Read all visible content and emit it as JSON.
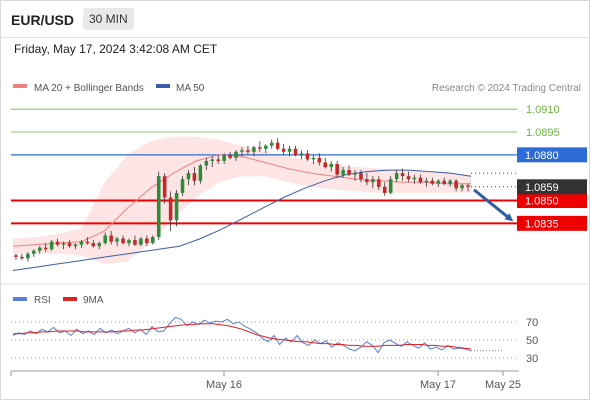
{
  "header": {
    "symbol": "EUR/USD",
    "timeframe": "30 MIN",
    "datetime": "Friday, May 17, 2024 3:42:08 AM CET"
  },
  "legend": {
    "ma20_label": "MA 20 + Bollinger Bands",
    "ma50_label": "MA 50",
    "credit": "Research © 2024 Trading Central",
    "rsi_label": "RSI",
    "rsi_ma_label": "9MA"
  },
  "colors": {
    "ma20": "#f08080",
    "bb_fill": "#fde0e0",
    "ma50": "#3a5ea8",
    "up": "#2e8b3a",
    "down": "#c62828",
    "resistance_green": "#6db33f",
    "level_blue": "#2d6bd6",
    "level_red": "#ee0000",
    "last_price": "#333333",
    "rsi": "#5b7fd8",
    "rsi_ma": "#dd2222",
    "arrow": "#2f5ea3"
  },
  "chart_data": [
    {
      "type": "candlestick",
      "symbol": "EUR/USD",
      "timeframe": "30 MIN",
      "ylim": [
        1.0805,
        1.0918
      ],
      "x_ticks": [
        "May 16",
        "May 17",
        "May 25"
      ],
      "levels": [
        {
          "value": 1.091,
          "label": "1.0910",
          "kind": "resistance",
          "color": "#6db33f"
        },
        {
          "value": 1.0895,
          "label": "1.0895",
          "kind": "resistance",
          "color": "#6db33f"
        },
        {
          "value": 1.088,
          "label": "1.0880",
          "kind": "pivot",
          "color": "#2d6bd6"
        },
        {
          "value": 1.085,
          "label": "1.0850",
          "kind": "support",
          "color": "#ee0000"
        },
        {
          "value": 1.0835,
          "label": "1.0835",
          "kind": "support",
          "color": "#ee0000"
        }
      ],
      "last_price": {
        "value": 1.0859,
        "label": "1.0859"
      },
      "series": [
        {
          "name": "MA 20 + Bollinger Bands",
          "note": "MA20 line with shaded band"
        },
        {
          "name": "MA 50"
        }
      ],
      "candles": [
        [
          1.0814,
          1.0815,
          1.0811,
          1.0813
        ],
        [
          1.0813,
          1.0815,
          1.0811,
          1.0812
        ],
        [
          1.0812,
          1.0816,
          1.081,
          1.0815
        ],
        [
          1.0815,
          1.0818,
          1.0813,
          1.0817
        ],
        [
          1.0817,
          1.082,
          1.0815,
          1.0819
        ],
        [
          1.0819,
          1.0822,
          1.0816,
          1.0818
        ],
        [
          1.0818,
          1.0824,
          1.0817,
          1.0823
        ],
        [
          1.0823,
          1.0825,
          1.082,
          1.0821
        ],
        [
          1.0821,
          1.0823,
          1.0818,
          1.0822
        ],
        [
          1.0822,
          1.0824,
          1.0819,
          1.082
        ],
        [
          1.082,
          1.0822,
          1.0818,
          1.0821
        ],
        [
          1.0821,
          1.0824,
          1.0819,
          1.0823
        ],
        [
          1.0823,
          1.0826,
          1.0821,
          1.0822
        ],
        [
          1.0822,
          1.0824,
          1.0819,
          1.082
        ],
        [
          1.082,
          1.0823,
          1.0818,
          1.0822
        ],
        [
          1.0822,
          1.0829,
          1.0821,
          1.0827
        ],
        [
          1.0827,
          1.083,
          1.0821,
          1.0823
        ],
        [
          1.0823,
          1.0826,
          1.082,
          1.0825
        ],
        [
          1.0825,
          1.0827,
          1.0821,
          1.0822
        ],
        [
          1.0822,
          1.0825,
          1.082,
          1.0824
        ],
        [
          1.0824,
          1.0827,
          1.082,
          1.0821
        ],
        [
          1.0821,
          1.0826,
          1.082,
          1.0825
        ],
        [
          1.0825,
          1.0827,
          1.082,
          1.0822
        ],
        [
          1.0822,
          1.0827,
          1.0821,
          1.0826
        ],
        [
          1.0826,
          1.0869,
          1.0824,
          1.0866
        ],
        [
          1.0866,
          1.0868,
          1.0848,
          1.0852
        ],
        [
          1.0852,
          1.0856,
          1.083,
          1.0837
        ],
        [
          1.0837,
          1.0857,
          1.0833,
          1.0855
        ],
        [
          1.0855,
          1.0866,
          1.0853,
          1.0864
        ],
        [
          1.0864,
          1.087,
          1.086,
          1.0868
        ],
        [
          1.0868,
          1.0872,
          1.086,
          1.0863
        ],
        [
          1.0863,
          1.0874,
          1.0861,
          1.0873
        ],
        [
          1.0873,
          1.0878,
          1.087,
          1.0876
        ],
        [
          1.0876,
          1.0879,
          1.0872,
          1.0877
        ],
        [
          1.0877,
          1.088,
          1.0874,
          1.0876
        ],
        [
          1.0876,
          1.0881,
          1.0874,
          1.088
        ],
        [
          1.088,
          1.0882,
          1.0877,
          1.0878
        ],
        [
          1.0878,
          1.0883,
          1.0876,
          1.0882
        ],
        [
          1.0882,
          1.0885,
          1.0879,
          1.0883
        ],
        [
          1.0883,
          1.0886,
          1.088,
          1.0882
        ],
        [
          1.0882,
          1.0886,
          1.0879,
          1.0885
        ],
        [
          1.0885,
          1.0889,
          1.0882,
          1.0884
        ],
        [
          1.0884,
          1.0887,
          1.0881,
          1.0886
        ],
        [
          1.0886,
          1.089,
          1.0884,
          1.0888
        ],
        [
          1.0888,
          1.0891,
          1.0883,
          1.0884
        ],
        [
          1.0884,
          1.0887,
          1.088,
          1.0882
        ],
        [
          1.0882,
          1.0886,
          1.0879,
          1.0884
        ],
        [
          1.0884,
          1.0886,
          1.0879,
          1.088
        ],
        [
          1.088,
          1.0883,
          1.0877,
          1.0881
        ],
        [
          1.0881,
          1.0883,
          1.0876,
          1.0877
        ],
        [
          1.0877,
          1.088,
          1.0874,
          1.0878
        ],
        [
          1.0878,
          1.0881,
          1.0873,
          1.0875
        ],
        [
          1.0875,
          1.0878,
          1.0871,
          1.0872
        ],
        [
          1.0872,
          1.0876,
          1.0869,
          1.0874
        ],
        [
          1.0874,
          1.0876,
          1.0865,
          1.0867
        ],
        [
          1.0867,
          1.0872,
          1.0865,
          1.087
        ],
        [
          1.087,
          1.0873,
          1.0866,
          1.0867
        ],
        [
          1.0867,
          1.087,
          1.0863,
          1.0868
        ],
        [
          1.0868,
          1.087,
          1.0862,
          1.0864
        ],
        [
          1.0864,
          1.0868,
          1.086,
          1.0862
        ],
        [
          1.0862,
          1.0866,
          1.0858,
          1.0864
        ],
        [
          1.0864,
          1.0866,
          1.0857,
          1.0859
        ],
        [
          1.0859,
          1.0862,
          1.0853,
          1.0855
        ],
        [
          1.0855,
          1.0866,
          1.0854,
          1.0864
        ],
        [
          1.0864,
          1.087,
          1.0862,
          1.0868
        ],
        [
          1.0868,
          1.0871,
          1.0863,
          1.0866
        ],
        [
          1.0866,
          1.0869,
          1.0862,
          1.0864
        ],
        [
          1.0864,
          1.0867,
          1.0861,
          1.0865
        ],
        [
          1.0865,
          1.0867,
          1.0861,
          1.0862
        ],
        [
          1.0862,
          1.0865,
          1.0859,
          1.0863
        ],
        [
          1.0863,
          1.0865,
          1.086,
          1.0861
        ],
        [
          1.0861,
          1.0864,
          1.0859,
          1.0863
        ],
        [
          1.0863,
          1.0865,
          1.086,
          1.0861
        ],
        [
          1.0861,
          1.0864,
          1.0859,
          1.0863
        ],
        [
          1.0863,
          1.0864,
          1.0856,
          1.0858
        ],
        [
          1.0858,
          1.0861,
          1.0856,
          1.086
        ],
        [
          1.086,
          1.0861,
          1.0856,
          1.0859
        ]
      ],
      "ma20": [
        1.082,
        1.0821,
        1.0822,
        1.0823,
        1.083,
        1.0845,
        1.0858,
        1.0868,
        1.0876,
        1.088,
        1.0879,
        1.0875,
        1.0871,
        1.0868,
        1.0866,
        1.0864,
        1.0863,
        1.0862,
        1.0862,
        1.0861,
        1.0861
      ],
      "bb_upper": [
        1.0825,
        1.0826,
        1.0828,
        1.0832,
        1.0862,
        1.088,
        1.0889,
        1.0892,
        1.0892,
        1.089,
        1.0886,
        1.0882,
        1.0879,
        1.0876,
        1.0874,
        1.0872,
        1.0871,
        1.087,
        1.0869,
        1.0868,
        1.0867
      ],
      "bb_lower": [
        1.0815,
        1.0815,
        1.0815,
        1.0814,
        1.0808,
        1.081,
        1.0822,
        1.0838,
        1.0852,
        1.0862,
        1.0866,
        1.0866,
        1.0862,
        1.0859,
        1.0857,
        1.0856,
        1.0855,
        1.0855,
        1.0855,
        1.0855,
        1.0855
      ],
      "ma50": [
        1.0804,
        1.0806,
        1.0808,
        1.081,
        1.0812,
        1.0814,
        1.0816,
        1.0818,
        1.082,
        1.0825,
        1.0831,
        1.0838,
        1.0845,
        1.0852,
        1.0858,
        1.0863,
        1.0867,
        1.0869,
        1.087,
        1.087,
        1.0869,
        1.0868,
        1.0866
      ],
      "forecast_arrow": {
        "from": 1.0857,
        "to": 1.0838
      }
    },
    {
      "type": "line",
      "title": "RSI",
      "ylim": [
        20,
        80
      ],
      "y_ticks": [
        70,
        50,
        30
      ],
      "series": [
        {
          "name": "RSI",
          "values": [
            55,
            58,
            56,
            60,
            57,
            62,
            59,
            64,
            58,
            60,
            55,
            62,
            57,
            60,
            56,
            63,
            58,
            61,
            57,
            60,
            63,
            58,
            62,
            56,
            65,
            59,
            60,
            68,
            75,
            73,
            66,
            70,
            67,
            72,
            69,
            71,
            70,
            73,
            68,
            70,
            65,
            62,
            58,
            52,
            48,
            55,
            45,
            52,
            48,
            55,
            47,
            44,
            50,
            46,
            49,
            42,
            47,
            44,
            40,
            38,
            42,
            48,
            44,
            36,
            47,
            50,
            46,
            43,
            48,
            44,
            41,
            47,
            40,
            42,
            39,
            44,
            40,
            41,
            40,
            38
          ]
        },
        {
          "name": "9MA",
          "values": [
            57,
            57,
            58,
            58,
            59,
            59,
            60,
            60,
            60,
            60,
            59,
            59,
            59,
            59,
            59,
            60,
            60,
            61,
            61,
            62,
            63,
            64,
            65,
            66,
            67,
            67,
            68,
            68,
            68,
            67,
            66,
            64,
            62,
            59,
            56,
            54,
            52,
            51,
            50,
            49,
            48,
            48,
            47,
            46,
            46,
            45,
            45,
            44,
            44,
            43,
            43,
            43,
            44,
            44,
            44,
            45,
            45,
            45,
            44,
            44,
            43,
            43,
            42,
            41,
            40
          ]
        }
      ]
    }
  ]
}
